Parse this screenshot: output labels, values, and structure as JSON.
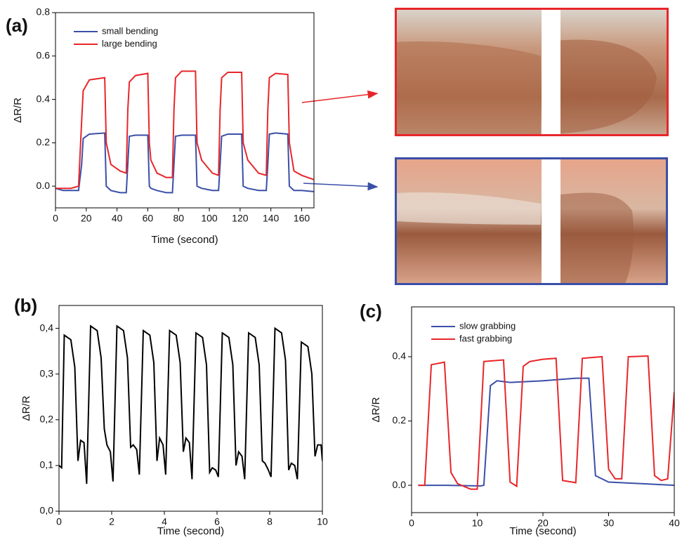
{
  "chart_data": [
    {
      "type": "line",
      "panel": "(a)",
      "xlabel": "Time (second)",
      "ylabel": "ΔR/R",
      "xlim": [
        0,
        168
      ],
      "xticks": [
        0,
        20,
        40,
        60,
        80,
        100,
        120,
        140,
        160
      ],
      "ylim": [
        -0.1,
        0.8
      ],
      "yticks": [
        {
          "value": 0,
          "label": "0.0"
        },
        0.2,
        0.4,
        0.6,
        0.8
      ],
      "legend": "upper left",
      "x": [
        0,
        5,
        10,
        15,
        17,
        18,
        22,
        32,
        33,
        36,
        42,
        46,
        47,
        48,
        52,
        60,
        61,
        62,
        66,
        72,
        76,
        77,
        78,
        82,
        91,
        92,
        95,
        102,
        106,
        107,
        108,
        112,
        121,
        122,
        125,
        132,
        137,
        138,
        139,
        143,
        151,
        152,
        155,
        160,
        168
      ],
      "series": [
        {
          "name": "small bending",
          "color": "#3a4fa8",
          "values": [
            -0.01,
            -0.02,
            -0.02,
            -0.02,
            0.1,
            0.22,
            0.24,
            0.245,
            0.0,
            -0.02,
            -0.03,
            -0.03,
            0.1,
            0.23,
            0.235,
            0.235,
            0.0,
            -0.01,
            -0.02,
            -0.03,
            -0.03,
            0.1,
            0.23,
            0.235,
            0.235,
            0.0,
            -0.01,
            -0.02,
            -0.02,
            0.1,
            0.23,
            0.24,
            0.24,
            0.0,
            -0.01,
            -0.02,
            -0.02,
            0.1,
            0.24,
            0.245,
            0.24,
            0.0,
            -0.02,
            -0.02,
            -0.025
          ]
        },
        {
          "name": "large bending",
          "color": "#e8262a",
          "values": [
            -0.01,
            -0.01,
            -0.01,
            0.0,
            0.3,
            0.44,
            0.49,
            0.5,
            0.2,
            0.1,
            0.07,
            0.06,
            0.35,
            0.48,
            0.51,
            0.52,
            0.2,
            0.12,
            0.06,
            0.04,
            0.04,
            0.35,
            0.5,
            0.53,
            0.53,
            0.2,
            0.12,
            0.06,
            0.05,
            0.35,
            0.5,
            0.525,
            0.525,
            0.2,
            0.12,
            0.06,
            0.05,
            0.35,
            0.5,
            0.52,
            0.515,
            0.2,
            0.07,
            0.05,
            0.03
          ]
        }
      ]
    },
    {
      "type": "line",
      "panel": "(b)",
      "xlabel": "Time (second)",
      "ylabel": "ΔR/R",
      "xlim": [
        0,
        10
      ],
      "xticks": [
        0,
        2,
        4,
        6,
        8,
        10
      ],
      "ylim": [
        0,
        0.45
      ],
      "yticks": [
        {
          "value": 0,
          "label": "0,0"
        },
        {
          "value": 0.1,
          "label": "0,1"
        },
        {
          "value": 0.2,
          "label": "0,2"
        },
        {
          "value": 0.3,
          "label": "0,3"
        },
        {
          "value": 0.4,
          "label": "0,4"
        }
      ],
      "color": "#000000",
      "x": [
        0,
        0.1,
        0.2,
        0.45,
        0.6,
        0.72,
        0.82,
        0.95,
        1.05,
        1.2,
        1.45,
        1.6,
        1.72,
        1.82,
        1.95,
        2.05,
        2.2,
        2.45,
        2.6,
        2.72,
        2.82,
        2.95,
        3.05,
        3.2,
        3.45,
        3.6,
        3.72,
        3.82,
        3.95,
        4.05,
        4.2,
        4.45,
        4.6,
        4.72,
        4.82,
        4.95,
        5.05,
        5.2,
        5.45,
        5.6,
        5.72,
        5.82,
        5.95,
        6.05,
        6.2,
        6.45,
        6.6,
        6.72,
        6.82,
        6.95,
        7.05,
        7.2,
        7.45,
        7.6,
        7.72,
        7.82,
        7.95,
        8.05,
        8.2,
        8.45,
        8.6,
        8.72,
        8.82,
        8.95,
        9.05,
        9.2,
        9.45,
        9.6,
        9.72,
        9.82,
        9.95,
        10
      ],
      "values": [
        0.1,
        0.095,
        0.385,
        0.375,
        0.315,
        0.11,
        0.155,
        0.15,
        0.06,
        0.405,
        0.395,
        0.335,
        0.18,
        0.145,
        0.13,
        0.065,
        0.405,
        0.395,
        0.335,
        0.14,
        0.145,
        0.135,
        0.08,
        0.395,
        0.385,
        0.325,
        0.11,
        0.16,
        0.145,
        0.08,
        0.395,
        0.385,
        0.325,
        0.13,
        0.16,
        0.15,
        0.07,
        0.39,
        0.38,
        0.32,
        0.085,
        0.095,
        0.09,
        0.075,
        0.39,
        0.38,
        0.32,
        0.1,
        0.13,
        0.12,
        0.07,
        0.39,
        0.38,
        0.32,
        0.11,
        0.105,
        0.09,
        0.075,
        0.4,
        0.39,
        0.33,
        0.09,
        0.105,
        0.1,
        0.07,
        0.37,
        0.36,
        0.3,
        0.12,
        0.145,
        0.145,
        0.11
      ]
    },
    {
      "type": "line",
      "panel": "(c)",
      "xlabel": "Time (second)",
      "ylabel": "ΔR/R",
      "xlim": [
        0,
        40
      ],
      "xticks": [
        0,
        10,
        20,
        30,
        40
      ],
      "ylim": [
        -0.085,
        0.555
      ],
      "yticks": [
        {
          "value": 0,
          "label": "0.0"
        },
        0.2,
        0.4
      ],
      "legend": "upper left",
      "series": [
        {
          "name": "slow grabbing",
          "color": "#3a4fa8",
          "x": [
            1,
            5,
            10.5,
            11,
            12,
            13,
            15,
            20,
            25,
            27,
            28,
            30,
            35,
            40
          ],
          "values": [
            0,
            0,
            -0.002,
            0,
            0.31,
            0.325,
            0.32,
            0.325,
            0.333,
            0.333,
            0.03,
            0.01,
            0.005,
            0
          ]
        },
        {
          "name": "fast grabbing",
          "color": "#e8262a",
          "x": [
            1,
            2,
            3,
            5,
            6,
            7,
            9,
            10,
            11,
            14,
            15,
            16,
            17,
            18,
            20,
            22,
            23,
            25,
            26,
            29,
            30,
            31,
            32,
            33,
            36,
            37,
            38,
            39,
            40
          ],
          "values": [
            0,
            0,
            0.375,
            0.383,
            0.04,
            0.005,
            -0.012,
            -0.012,
            0.385,
            0.39,
            0.01,
            -0.003,
            0.37,
            0.385,
            0.392,
            0.395,
            0.015,
            0.008,
            0.395,
            0.4,
            0.05,
            0.02,
            0.02,
            0.4,
            0.402,
            0.03,
            0.015,
            0.02,
            0.29
          ]
        }
      ]
    }
  ]
}
